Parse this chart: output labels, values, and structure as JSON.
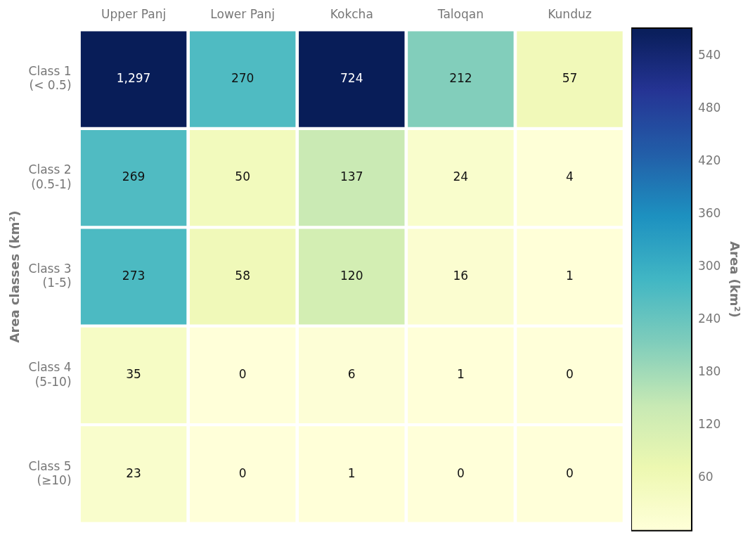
{
  "chart_data": {
    "type": "heatmap",
    "ylabel": "Area classes (km²)",
    "clabel": "Area (km²)",
    "categories": [
      "Upper Panj",
      "Lower Panj",
      "Kokcha",
      "Taloqan",
      "Kunduz"
    ],
    "y_categories": [
      "Class 1 (< 0.5)",
      "Class 2 (0.5-1)",
      "Class 3 (1-5)",
      "Class 4 (5-10)",
      "Class 5 (≥10)"
    ],
    "cells": [
      [
        1297,
        270,
        724,
        212,
        57
      ],
      [
        269,
        50,
        137,
        24,
        4
      ],
      [
        273,
        58,
        120,
        16,
        1
      ],
      [
        35,
        0,
        6,
        1,
        0
      ],
      [
        23,
        0,
        1,
        0,
        0
      ]
    ],
    "cell_labels": [
      [
        "1,297",
        "270",
        "724",
        "212",
        "57"
      ],
      [
        "269",
        "50",
        "137",
        "24",
        "4"
      ],
      [
        "273",
        "58",
        "120",
        "16",
        "1"
      ],
      [
        "35",
        "0",
        "6",
        "1",
        "0"
      ],
      [
        "23",
        "0",
        "1",
        "0",
        "0"
      ]
    ],
    "clim": [
      0,
      572
    ],
    "cticks": [
      60,
      120,
      180,
      240,
      300,
      360,
      420,
      480,
      540
    ]
  }
}
